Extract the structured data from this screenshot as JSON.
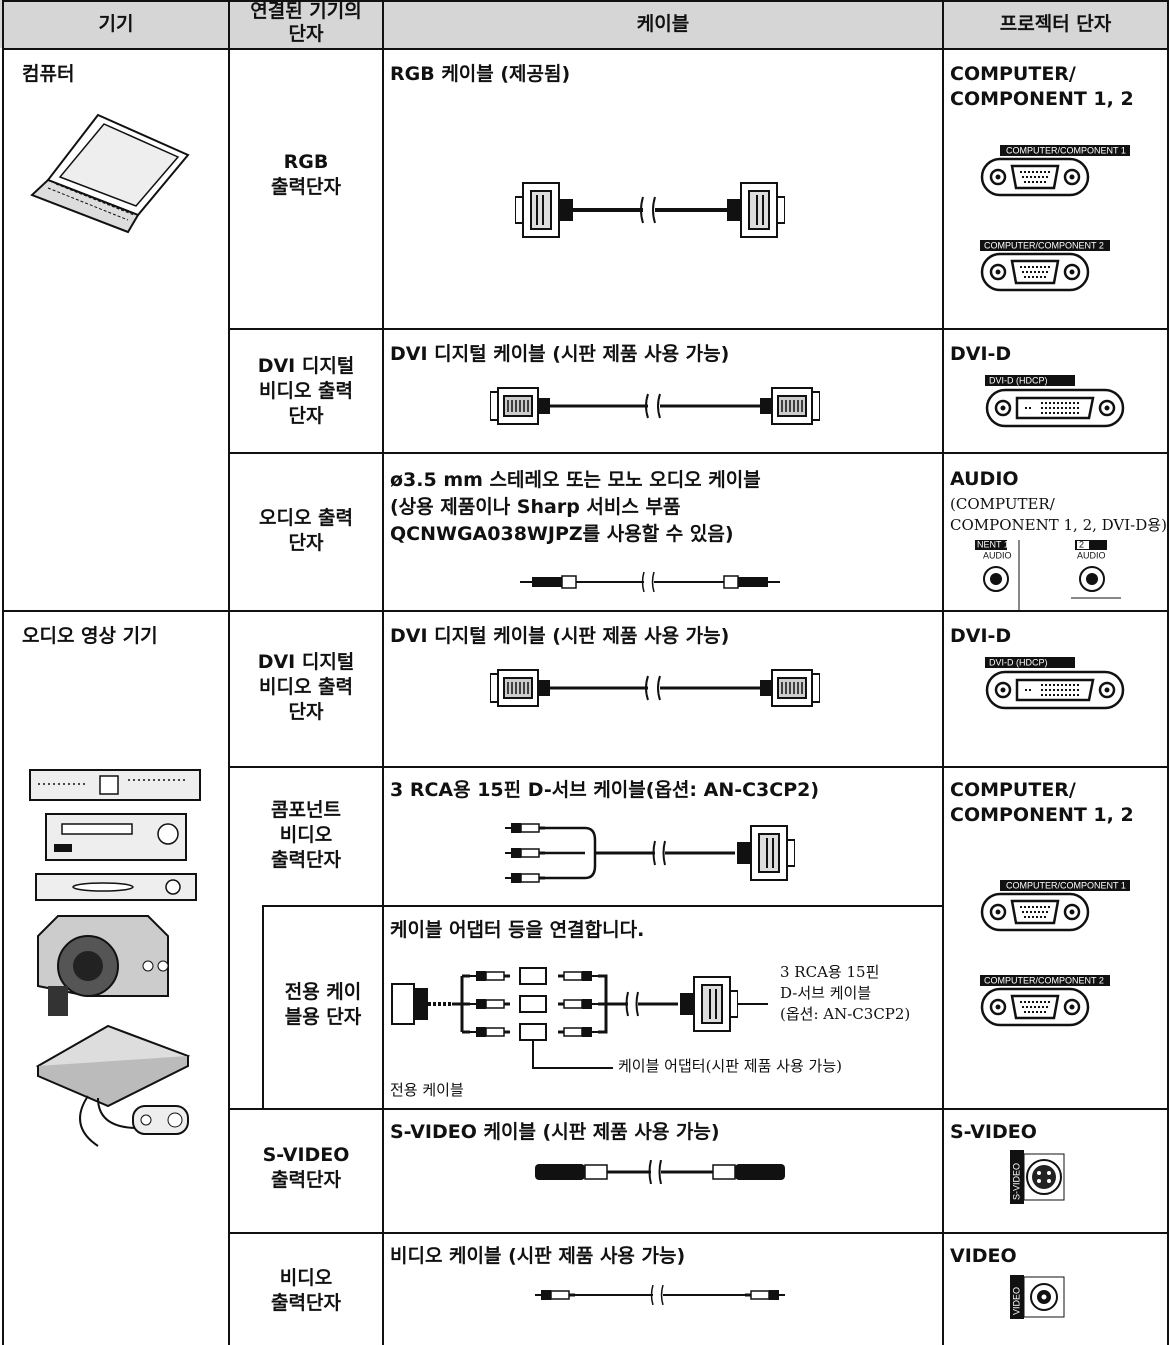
{
  "header": {
    "device": "기기",
    "terminal": "연결된 기기의\n단자",
    "cable": "케이블",
    "port": "프로젝터 단자"
  },
  "devices": [
    "컴퓨터",
    "오디오 영상 기기"
  ],
  "rows": [
    {
      "terminal": "RGB\n출력단자",
      "cable": "RGB 케이블 (제공됨)",
      "port": "COMPUTER/\nCOMPONENT 1, 2",
      "port_labels": [
        "COMPUTER/COMPONENT 1",
        "COMPUTER/COMPONENT 2"
      ]
    },
    {
      "terminal": "DVI 디지털\n비디오 출력\n단자",
      "cable": "DVI 디지털 케이블 (시판 제품 사용 가능)",
      "port": "DVI-D",
      "port_labels": [
        "DVI-D (HDCP)"
      ]
    },
    {
      "terminal": "오디오 출력\n단자",
      "cable": "ø3.5 mm 스테레오 또는 모노 오디오 케이블\n(상용 제품이나 Sharp 서비스 부품\nQCNWGA038WJPZ를 사용할 수 있음)",
      "port": "AUDIO",
      "port_note": "(COMPUTER/\nCOMPONENT 1, 2, DVI-D용)",
      "port_labels": [
        "NENT 1",
        "AUDIO",
        "2",
        "AUDIO"
      ]
    },
    {
      "terminal": "DVI 디지털\n비디오 출력\n단자",
      "cable": "DVI 디지털 케이블 (시판 제품 사용 가능)",
      "port": "DVI-D",
      "port_labels": [
        "DVI-D (HDCP)"
      ]
    },
    {
      "terminal": "콤포넌트\n비디오\n출력단자",
      "cable": "3 RCA용 15핀 D-서브 케이블(옵션: AN-C3CP2)",
      "port": "COMPUTER/\nCOMPONENT 1, 2",
      "port_labels": [
        "COMPUTER/COMPONENT 1",
        "COMPUTER/COMPONENT 2"
      ]
    },
    {
      "terminal": "전용 케이\n블용 단자",
      "cable": "케이블 어댑터 등을 연결합니다.",
      "cable_notes": [
        "3 RCA용 15핀\nD-서브 케이블\n(옵션: AN-C3CP2)",
        "케이블 어댑터(시판 제품 사용 가능)",
        "전용 케이블"
      ]
    },
    {
      "terminal": "S-VIDEO\n출력단자",
      "cable": "S-VIDEO 케이블 (시판 제품 사용 가능)",
      "port": "S-VIDEO",
      "port_labels": [
        "S-VIDEO"
      ]
    },
    {
      "terminal": "비디오\n출력단자",
      "cable": "비디오 케이블 (시판 제품 사용 가능)",
      "port": "VIDEO",
      "port_labels": [
        "VIDEO"
      ]
    }
  ]
}
